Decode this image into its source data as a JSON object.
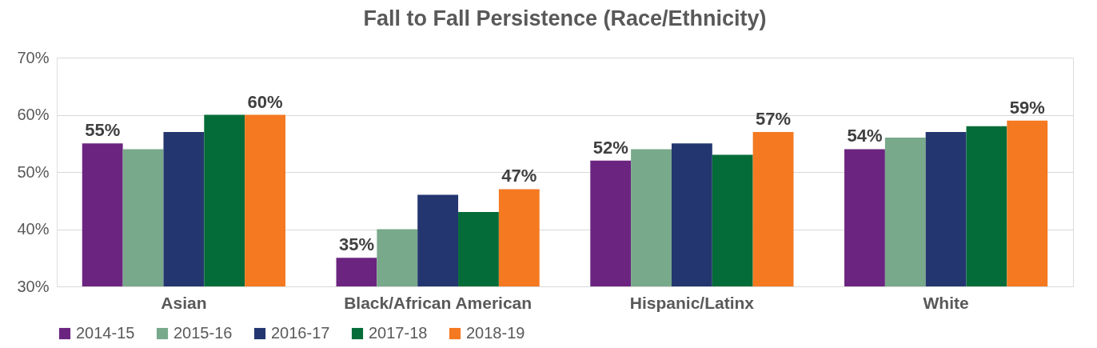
{
  "chart_data": {
    "type": "bar",
    "title": "Fall to Fall Persistence (Race/Ethnicity)",
    "categories": [
      "Asian",
      "Black/African American",
      "Hispanic/Latinx",
      "White"
    ],
    "series": [
      {
        "name": "2014-15",
        "color": "#6b2580",
        "values": [
          55,
          35,
          52,
          54
        ],
        "value_labels": [
          "55%",
          "35%",
          "52%",
          "54%"
        ]
      },
      {
        "name": "2015-16",
        "color": "#78a98a",
        "values": [
          54,
          40,
          54,
          56
        ]
      },
      {
        "name": "2016-17",
        "color": "#243670",
        "values": [
          57,
          46,
          55,
          57
        ]
      },
      {
        "name": "2017-18",
        "color": "#046c38",
        "values": [
          60,
          43,
          53,
          58
        ]
      },
      {
        "name": "2018-19",
        "color": "#f47920",
        "values": [
          60,
          47,
          57,
          59
        ],
        "value_labels": [
          "60%",
          "47%",
          "57%",
          "59%"
        ]
      }
    ],
    "ylim": [
      30,
      70
    ],
    "yticks": [
      {
        "value": 30,
        "label": "30%"
      },
      {
        "value": 40,
        "label": "40%"
      },
      {
        "value": 50,
        "label": "50%"
      },
      {
        "value": 60,
        "label": "60%"
      },
      {
        "value": 70,
        "label": "70%"
      }
    ],
    "grid": "y",
    "legend": "bottom"
  }
}
